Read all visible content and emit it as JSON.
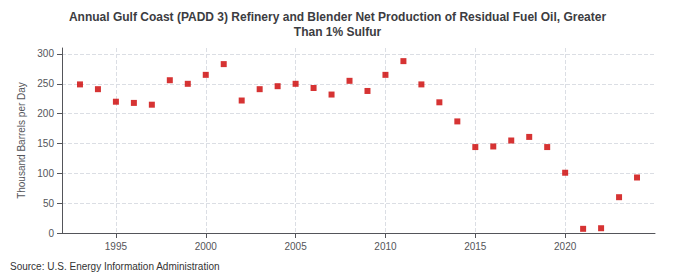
{
  "chart_data": {
    "type": "scatter",
    "title": "Annual Gulf Coast (PADD 3) Refinery and Blender Net Production of Residual Fuel Oil, Greater\nThan 1% Sulfur",
    "ylabel": "Thousand Barrels per Day",
    "annotations": [
      "Source: U.S. Energy Information Administration"
    ],
    "x": [
      1993,
      1994,
      1995,
      1996,
      1997,
      1998,
      1999,
      2000,
      2001,
      2002,
      2003,
      2004,
      2005,
      2006,
      2007,
      2008,
      2009,
      2010,
      2011,
      2012,
      2013,
      2014,
      2015,
      2016,
      2017,
      2018,
      2019,
      2020,
      2021,
      2022,
      2023,
      2024
    ],
    "values": [
      249,
      241,
      220,
      218,
      215,
      256,
      250,
      265,
      283,
      222,
      241,
      246,
      250,
      243,
      232,
      255,
      238,
      265,
      288,
      249,
      219,
      187,
      144,
      145,
      155,
      161,
      144,
      101,
      7,
      8,
      60,
      93
    ],
    "color": "#cc0000",
    "marker": "square",
    "xlim": [
      1992,
      2025
    ],
    "xticks": [
      1995,
      2000,
      2005,
      2010,
      2015,
      2020
    ],
    "ylim": [
      0,
      310
    ],
    "yticks": [
      0,
      50,
      100,
      150,
      200,
      250,
      300
    ],
    "grid": true
  }
}
